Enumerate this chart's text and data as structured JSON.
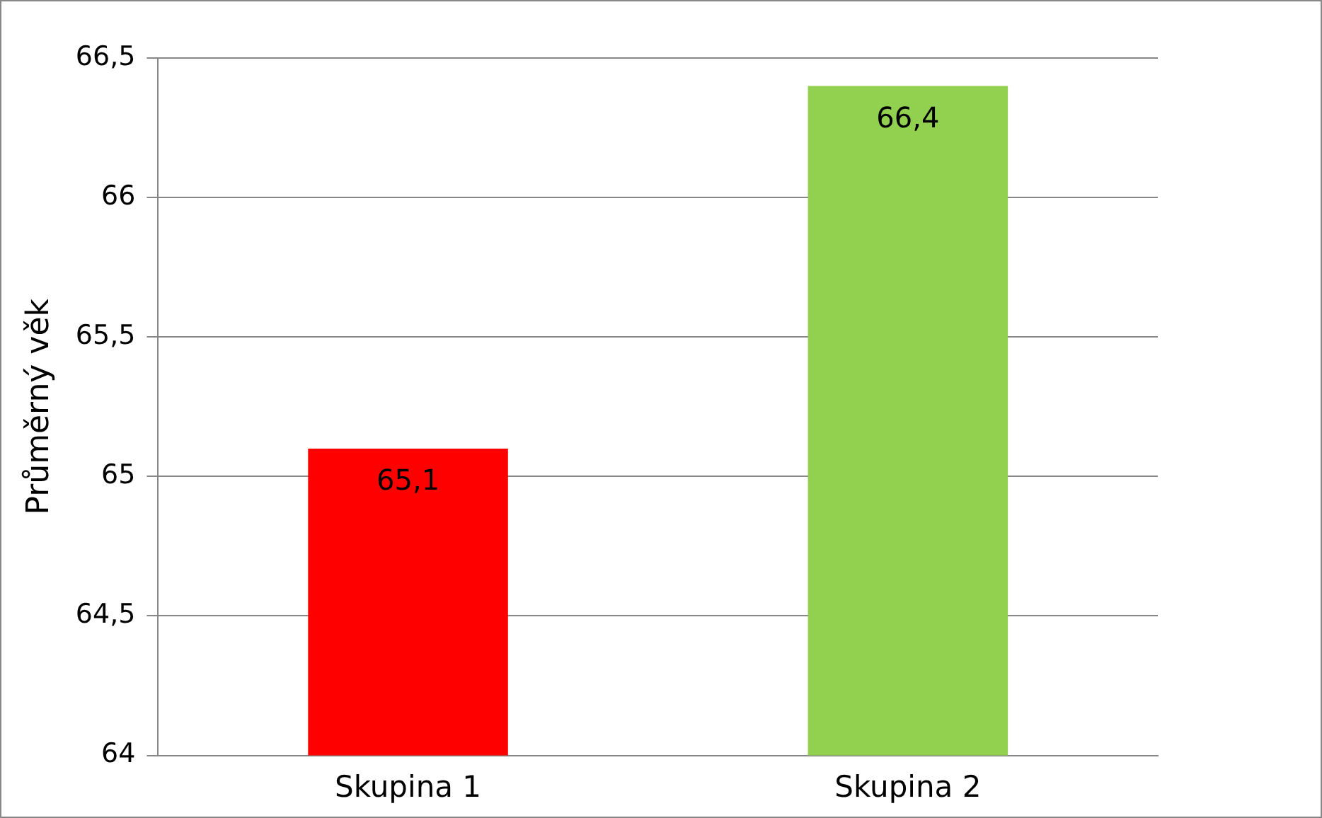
{
  "chart_data": {
    "type": "bar",
    "ylabel": "Průměrný věk",
    "categories": [
      "Skupina 1",
      "Skupina 2"
    ],
    "values": [
      65.1,
      66.4
    ],
    "colors": [
      "#ff0000",
      "#92d050"
    ],
    "value_labels": [
      "65,1",
      "66,4"
    ],
    "ylim": [
      64,
      66.5
    ],
    "yticks": [
      64,
      {
        "value": 64.5,
        "label": "64,5"
      },
      65,
      {
        "value": 65.5,
        "label": "65,5"
      },
      66,
      {
        "value": 66.5,
        "label": "66,5"
      }
    ],
    "grid": "y",
    "legend": false
  }
}
